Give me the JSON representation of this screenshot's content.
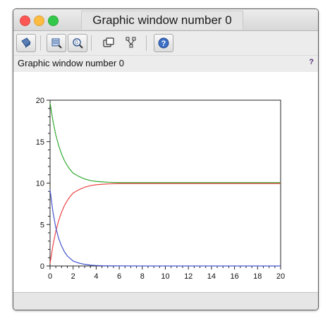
{
  "window": {
    "title": "Graphic window number 0",
    "status_label": "Graphic window number 0",
    "help_label": "?"
  },
  "toolbar": {
    "buttons": [
      {
        "name": "rotate-icon"
      },
      {
        "name": "zoom-icon"
      },
      {
        "name": "unzoom-icon"
      },
      {
        "name": "datatip-icon"
      },
      {
        "name": "edit-tree-icon"
      },
      {
        "name": "help-icon"
      }
    ]
  },
  "chart_data": {
    "type": "line",
    "xlim": [
      0,
      20
    ],
    "ylim": [
      0,
      20
    ],
    "xticks": [
      "0",
      "2",
      "4",
      "6",
      "8",
      "10",
      "12",
      "14",
      "16",
      "18",
      "20"
    ],
    "yticks": [
      "0",
      "5",
      "10",
      "15",
      "20"
    ],
    "grid": false,
    "x": [
      0,
      0.25,
      0.5,
      0.75,
      1,
      1.25,
      1.5,
      1.75,
      2,
      2.5,
      3,
      3.5,
      4,
      4.5,
      5,
      6,
      8,
      10,
      12,
      14,
      16,
      18,
      20
    ],
    "series": [
      {
        "color": "#33aa33",
        "values": [
          19.7,
          17.5,
          15.8,
          14.5,
          13.5,
          12.7,
          12.1,
          11.6,
          11.2,
          10.8,
          10.5,
          10.3,
          10.2,
          10.15,
          10.1,
          10.05,
          10.05,
          10.05,
          10.05,
          10.05,
          10.05,
          10.05,
          10.05
        ]
      },
      {
        "color": "#ee4444",
        "values": [
          0.3,
          2.5,
          4.2,
          5.5,
          6.5,
          7.3,
          7.9,
          8.4,
          8.8,
          9.2,
          9.5,
          9.7,
          9.8,
          9.85,
          9.9,
          9.95,
          9.95,
          9.95,
          9.95,
          9.95,
          9.95,
          9.95,
          9.95
        ]
      },
      {
        "color": "#4455cc",
        "values": [
          9.2,
          6.5,
          4.6,
          3.3,
          2.4,
          1.7,
          1.2,
          0.9,
          0.6,
          0.35,
          0.2,
          0.1,
          0.06,
          0.03,
          0.02,
          0.01,
          0.0,
          0.0,
          0.0,
          0.0,
          0.0,
          0.0,
          0.0
        ]
      }
    ]
  }
}
